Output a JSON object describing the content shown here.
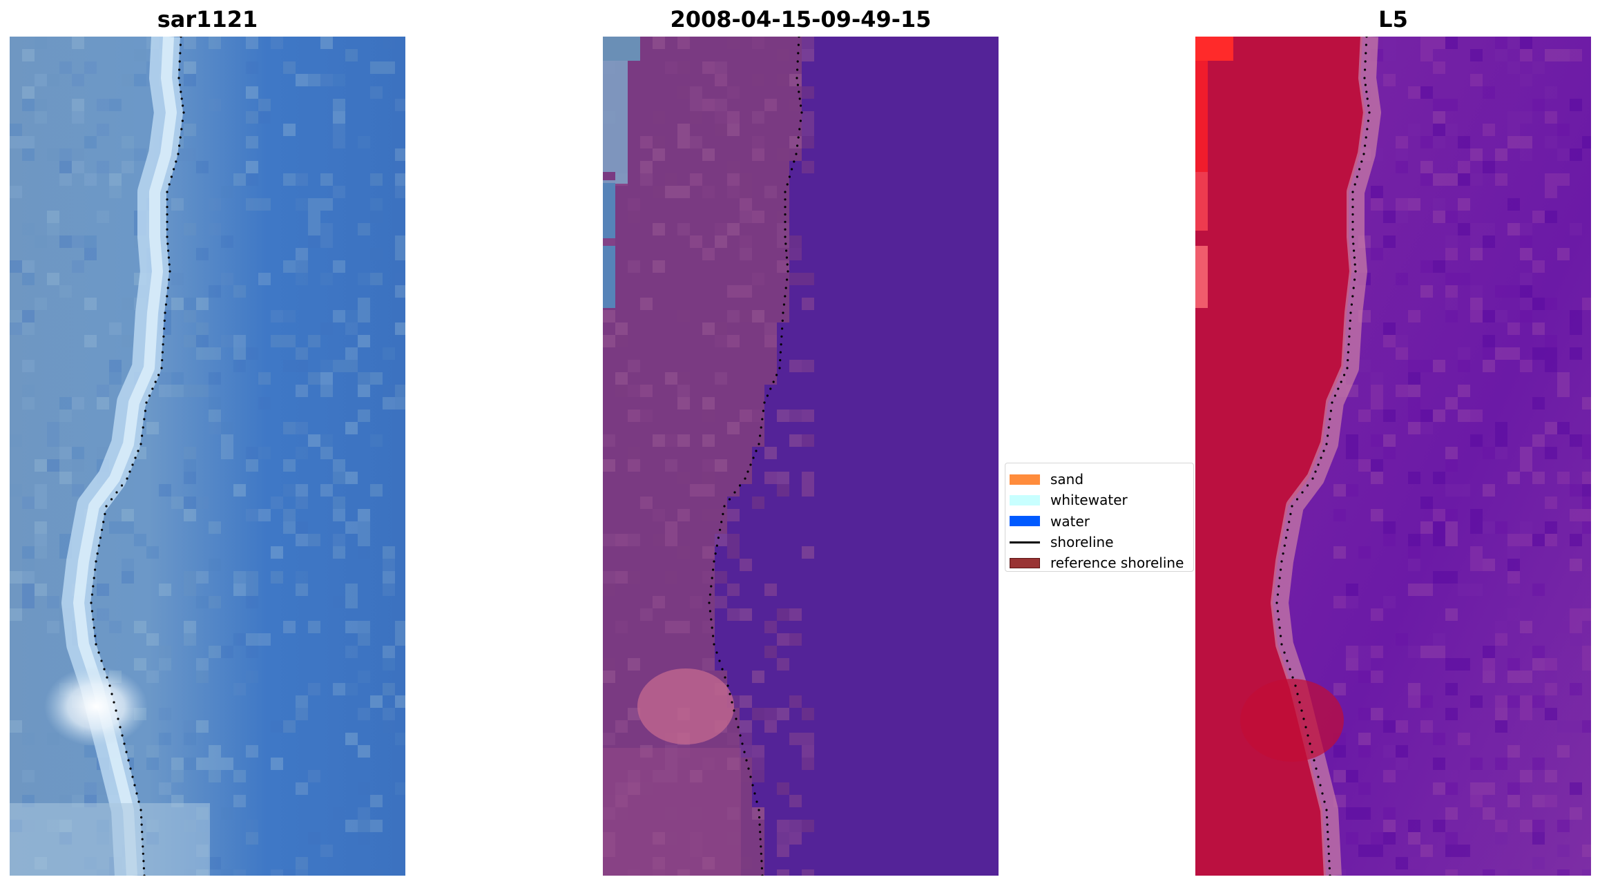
{
  "panels": [
    {
      "title": "sar1121",
      "kind": "rgb"
    },
    {
      "title": "2008-04-15-09-49-15",
      "kind": "classified"
    },
    {
      "title": "L5",
      "kind": "mndwi"
    }
  ],
  "legend": {
    "items": [
      {
        "label": "sand",
        "type": "patch",
        "color": "#ff8c3c",
        "edge": "#ff8c3c"
      },
      {
        "label": "whitewater",
        "type": "patch",
        "color": "#c8ffff",
        "edge": "#c8ffff"
      },
      {
        "label": "water",
        "type": "patch",
        "color": "#005aff",
        "edge": "#005aff"
      },
      {
        "label": "shoreline",
        "type": "line",
        "color": "#000000"
      },
      {
        "label": "reference shoreline",
        "type": "patch",
        "color": "#993333",
        "edge": "#5a1414"
      }
    ]
  },
  "colors": {
    "classified_water": "#542398",
    "shoreline_dots": "#000000",
    "legend_border": "#d6d6d6"
  }
}
